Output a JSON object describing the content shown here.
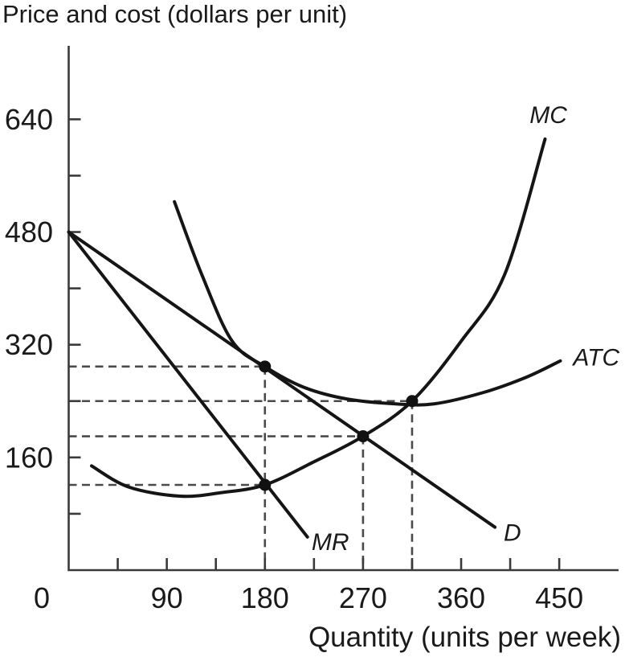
{
  "figure": {
    "y_axis_caption": "Price and cost (dollars per unit)",
    "x_axis_caption": "Quantity (units per week)"
  },
  "colors": {
    "curve": "#151515",
    "axis": "#3a3a3a",
    "dashed_guide": "#4a4a4a",
    "marker": "#111111",
    "background": "#ffffff",
    "text": "#1a1a1a"
  },
  "chart_data": {
    "type": "line",
    "title": "Price and cost (dollars per unit)",
    "xlabel": "Quantity (units per week)",
    "ylabel": "Price and cost (dollars per unit)",
    "grid": "off",
    "x_axis": {
      "min": 0,
      "max": 505,
      "major_ticks": [
        0,
        90,
        180,
        270,
        360,
        450
      ],
      "minor_ticks": [
        45,
        135,
        225,
        315,
        405
      ],
      "origin_label": "0"
    },
    "y_axis": {
      "min": 0,
      "max": 745,
      "major_ticks": [
        160,
        320,
        480,
        640
      ],
      "minor_ticks": [
        80,
        240,
        400,
        560
      ]
    },
    "series": [
      {
        "name": "MC",
        "shape": "curve",
        "points": [
          [
            21,
            148
          ],
          [
            55,
            118
          ],
          [
            102,
            105
          ],
          [
            140,
            110
          ],
          [
            180,
            121
          ],
          [
            224,
            153
          ],
          [
            270,
            190
          ],
          [
            315,
            240
          ],
          [
            360,
            325
          ],
          [
            400,
            420
          ],
          [
            437,
            612
          ]
        ],
        "label": {
          "text": "MC",
          "q": 440,
          "v": 646
        }
      },
      {
        "name": "ATC",
        "shape": "curve",
        "points": [
          [
            97,
            523
          ],
          [
            122,
            420
          ],
          [
            150,
            325
          ],
          [
            180,
            289
          ],
          [
            215,
            260
          ],
          [
            255,
            243
          ],
          [
            300,
            236
          ],
          [
            335,
            236
          ],
          [
            380,
            252
          ],
          [
            420,
            274
          ],
          [
            451,
            297
          ]
        ],
        "label": {
          "text": "ATC",
          "q": 484,
          "v": 302
        }
      },
      {
        "name": "D",
        "shape": "line",
        "points": [
          [
            0,
            480
          ],
          [
            391,
            61
          ]
        ],
        "label": {
          "text": "D",
          "q": 407,
          "v": 53
        }
      },
      {
        "name": "MR",
        "shape": "line",
        "points": [
          [
            0,
            480
          ],
          [
            219,
            47
          ]
        ],
        "label": {
          "text": "MR",
          "q": 240,
          "v": 40
        }
      }
    ],
    "markers": [
      {
        "q": 180,
        "v": 289
      },
      {
        "q": 315,
        "v": 240
      },
      {
        "q": 270,
        "v": 190
      },
      {
        "q": 180,
        "v": 121
      }
    ],
    "dashed_guides": {
      "horizontal": [
        {
          "v": 289,
          "to_q": 180
        },
        {
          "v": 240,
          "to_q": 315
        },
        {
          "v": 190,
          "to_q": 270
        },
        {
          "v": 121,
          "to_q": 180
        }
      ],
      "vertical": [
        {
          "q": 180,
          "from_v": 289
        },
        {
          "q": 270,
          "from_v": 190
        },
        {
          "q": 315,
          "from_v": 240
        }
      ]
    }
  }
}
